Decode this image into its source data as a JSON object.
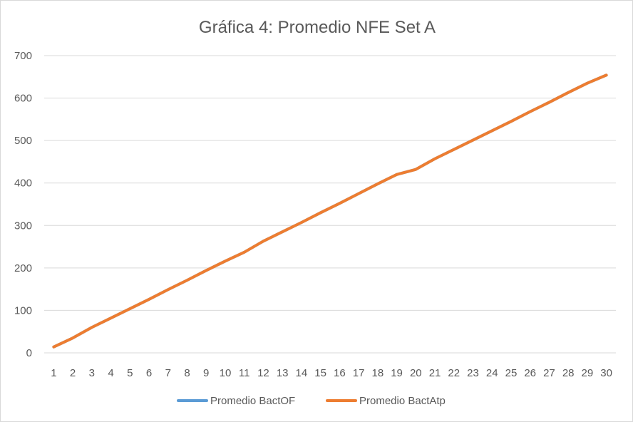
{
  "chart_data": {
    "type": "line",
    "title": "Gráfica 4: Promedio NFE Set A",
    "xlabel": "",
    "ylabel": "",
    "x": [
      1,
      2,
      3,
      4,
      5,
      6,
      7,
      8,
      9,
      10,
      11,
      12,
      13,
      14,
      15,
      16,
      17,
      18,
      19,
      20,
      21,
      22,
      23,
      24,
      25,
      26,
      27,
      28,
      29,
      30
    ],
    "x_tick_labels": [
      "1",
      "2",
      "3",
      "4",
      "5",
      "6",
      "7",
      "8",
      "9",
      "10",
      "11",
      "12",
      "13",
      "14",
      "15",
      "16",
      "17",
      "18",
      "19",
      "20",
      "21",
      "22",
      "23",
      "24",
      "25",
      "26",
      "27",
      "28",
      "29",
      "30"
    ],
    "ylim": [
      0,
      700
    ],
    "y_ticks": [
      0,
      100,
      200,
      300,
      400,
      500,
      600,
      700
    ],
    "y_tick_labels": [
      "0",
      "100",
      "200",
      "300",
      "400",
      "500",
      "600",
      "700"
    ],
    "grid": "horizontal",
    "legend_position": "bottom",
    "series": [
      {
        "name": "Promedio BactOF",
        "color": "#5b9bd5",
        "values": [
          14,
          35,
          60,
          82,
          104,
          126,
          149,
          171,
          194,
          216,
          237,
          263,
          285,
          307,
          330,
          352,
          375,
          398,
          420,
          432,
          457,
          479,
          501,
          523,
          545,
          568,
          590,
          613,
          635,
          654
        ]
      },
      {
        "name": "Promedio BactAtp",
        "color": "#ed7d31",
        "values": [
          14,
          35,
          60,
          82,
          104,
          126,
          149,
          171,
          194,
          216,
          237,
          263,
          285,
          307,
          330,
          352,
          375,
          398,
          420,
          432,
          457,
          479,
          501,
          523,
          545,
          568,
          590,
          613,
          635,
          654
        ]
      }
    ]
  }
}
